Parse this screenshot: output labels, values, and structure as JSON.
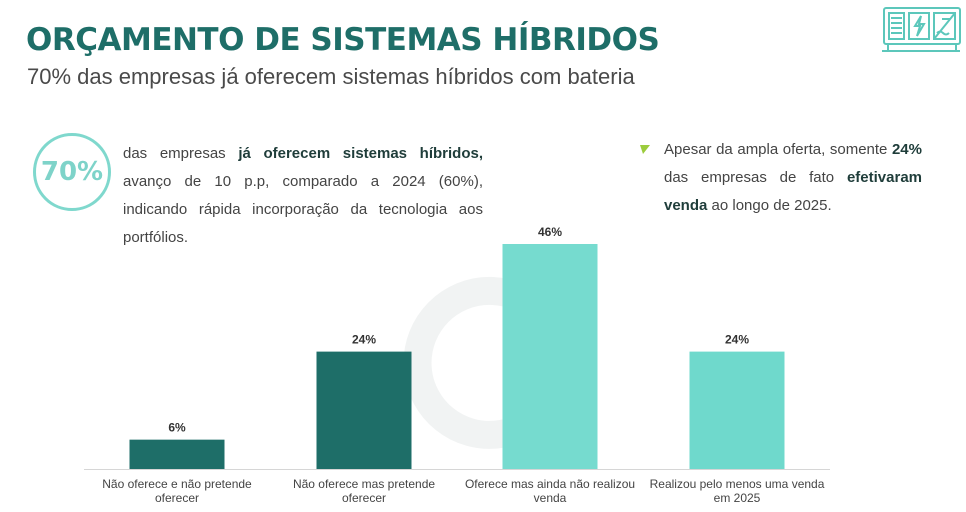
{
  "header": {
    "title": "ORÇAMENTO DE SISTEMAS HÍBRIDOS",
    "subtitle": "70% das empresas já oferecem sistemas híbridos com bateria"
  },
  "highlight": {
    "value": "70%",
    "text_part1": "das empresas ",
    "text_bold": "já oferecem sistemas híbridos,",
    "text_part2": " avanço de 10 p.p, comparado a 2024 (60%), indicando rápida incorporação da tecnologia aos portfólios."
  },
  "note": {
    "text_part1": "Apesar da ampla oferta, somente ",
    "bold1": "24%",
    "text_part2": " das empresas de fato ",
    "bold2": "efetivaram venda",
    "text_part3": " ao longo de 2025."
  },
  "colors": {
    "dark_bar": "#1e6e68",
    "light_bar": "#6fd9cc",
    "title": "#1e6e68"
  },
  "chart_data": {
    "type": "bar",
    "categories": [
      "Não oferece e não pretende oferecer",
      "Não oferece mas pretende oferecer",
      "Oferece mas ainda não realizou venda",
      "Realizou pelo menos uma venda em 2025"
    ],
    "values": [
      6,
      24,
      46,
      24
    ],
    "data_labels": [
      "6%",
      "24%",
      "46%",
      "24%"
    ],
    "bar_colors": [
      "#1e6e68",
      "#1e6e68",
      "#6fd9cc",
      "#6fd9cc"
    ],
    "ylabel": "",
    "xlabel": "",
    "ylim": [
      0,
      46
    ],
    "unit": "%"
  }
}
